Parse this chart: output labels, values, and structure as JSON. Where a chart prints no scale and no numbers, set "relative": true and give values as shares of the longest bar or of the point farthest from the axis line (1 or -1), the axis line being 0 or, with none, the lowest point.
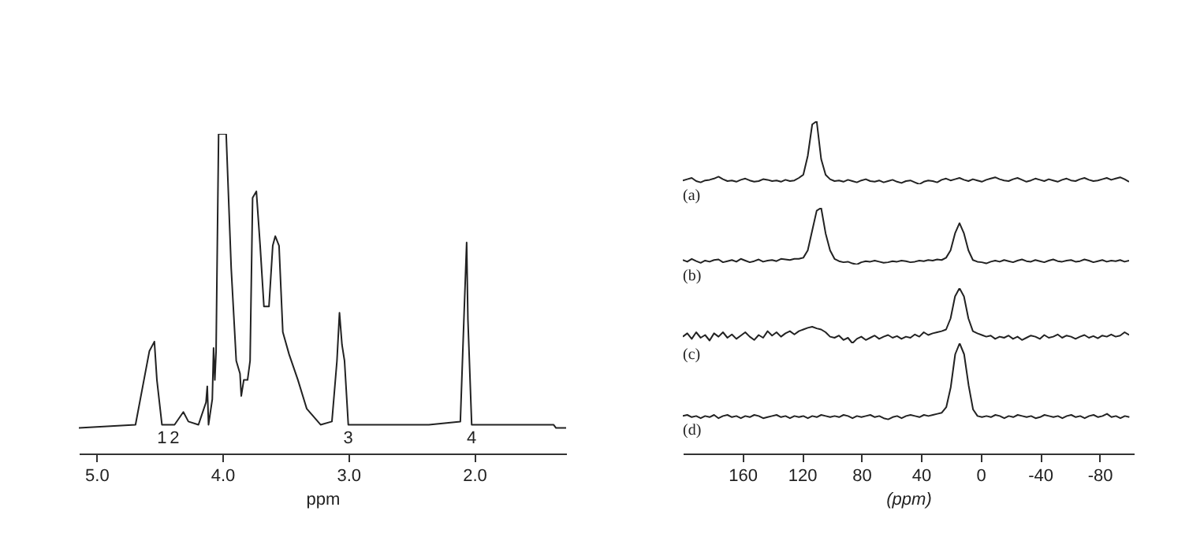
{
  "chart_data": [
    {
      "type": "line",
      "color": "#222222",
      "relative": true,
      "xlabel": "ppm",
      "xlim": [
        5.14,
        1.27
      ],
      "xticks": [
        {
          "value": 5,
          "label": "5.0"
        },
        {
          "value": 4,
          "label": "4.0"
        },
        {
          "value": 3,
          "label": "3.0"
        },
        {
          "value": 2,
          "label": "2.0"
        }
      ],
      "x": [
        5.14,
        4.69,
        4.58,
        4.54,
        4.52,
        4.48,
        4.38,
        4.31,
        4.27,
        4.19,
        4.13,
        4.12,
        4.11,
        4.08,
        4.07,
        4.06,
        4.05,
        4.03,
        3.97,
        3.93,
        3.89,
        3.86,
        3.85,
        3.83,
        3.8,
        3.78,
        3.76,
        3.73,
        3.7,
        3.67,
        3.63,
        3.6,
        3.58,
        3.55,
        3.52,
        3.47,
        3.4,
        3.33,
        3.22,
        3.13,
        3.09,
        3.07,
        3.05,
        3.03,
        3.0,
        2.95,
        2.36,
        2.11,
        2.08,
        2.06,
        2.05,
        2.02,
        1.94,
        1.43,
        1.37,
        1.35,
        1.27
      ],
      "values": [
        0.08,
        0.09,
        0.32,
        0.35,
        0.23,
        0.09,
        0.09,
        0.13,
        0.1,
        0.09,
        0.16,
        0.21,
        0.09,
        0.17,
        0.33,
        0.23,
        0.32,
        1,
        1,
        0.58,
        0.29,
        0.25,
        0.18,
        0.23,
        0.23,
        0.29,
        0.8,
        0.82,
        0.65,
        0.46,
        0.46,
        0.65,
        0.68,
        0.65,
        0.38,
        0.31,
        0.23,
        0.14,
        0.09,
        0.1,
        0.29,
        0.44,
        0.34,
        0.29,
        0.09,
        0.09,
        0.09,
        0.1,
        0.44,
        0.66,
        0.42,
        0.09,
        0.09,
        0.09,
        0.09,
        0.08,
        0.08
      ],
      "annotations": [
        {
          "text": "1",
          "x": 4.48,
          "y": 0.09
        },
        {
          "text": "2",
          "x": 4.38,
          "y": 0.09
        },
        {
          "text": "3",
          "x": 3.0,
          "y": 0.09
        },
        {
          "text": "4",
          "x": 2.02,
          "y": 0.09
        }
      ]
    },
    {
      "type": "line",
      "color": "#222222",
      "relative": true,
      "categories": [
        null,
        null,
        null,
        null,
        null,
        null,
        null,
        null,
        null,
        null,
        null,
        null,
        null,
        null,
        null,
        null,
        null,
        null,
        null,
        null,
        null,
        null,
        null,
        null,
        null,
        null,
        null,
        null,
        null,
        null,
        null,
        null,
        null,
        null,
        null,
        null,
        null,
        null,
        null,
        null,
        null,
        null,
        null,
        null,
        null,
        null,
        null,
        null,
        null,
        null,
        null,
        null,
        null,
        null,
        null,
        null,
        null,
        null,
        null,
        null,
        null,
        null,
        null,
        null,
        null,
        null,
        null,
        null,
        null,
        null,
        null,
        null,
        null,
        null,
        null,
        null,
        null,
        null,
        null,
        null,
        null,
        null,
        null,
        null,
        null,
        null,
        null,
        null,
        null,
        null,
        null,
        null,
        null,
        null,
        null,
        null,
        null,
        null,
        null,
        null,
        null
      ],
      "values": [
        0.06,
        0.08,
        0.1,
        0.05,
        0.03,
        0.06,
        0.07,
        0.09,
        0.12,
        0.08,
        0.05,
        0.06,
        0.04,
        0.07,
        0.09,
        0.06,
        0.04,
        0.05,
        0.08,
        0.07,
        0.05,
        0.06,
        0.04,
        0.07,
        0.05,
        0.06,
        0.1,
        0.15,
        0.45,
        0.95,
        1,
        0.4,
        0.15,
        0.08,
        0.05,
        0.06,
        0.04,
        0.07,
        0.05,
        0.03,
        0.06,
        0.08,
        0.05,
        0.04,
        0.06,
        0.03,
        0.05,
        0.07,
        0.04,
        0.02,
        0.05,
        0.06,
        0.03,
        0,
        0.04,
        0.06,
        0.05,
        0.03,
        0.07,
        0.09,
        0.06,
        0.08,
        0.1,
        0.07,
        0.05,
        0.08,
        0.06,
        0.04,
        0.07,
        0.09,
        0.11,
        0.08,
        0.06,
        0.05,
        0.08,
        0.1,
        0.07,
        0.04,
        0.06,
        0.09,
        0.07,
        0.05,
        0.08,
        0.06,
        0.04,
        0.07,
        0.09,
        0.06,
        0.05,
        0.08,
        0.1,
        0.07,
        0.05,
        0.06,
        0.08,
        0.1,
        0.07,
        0.09,
        0.11,
        0.08,
        0.04
      ],
      "annotations": [
        "(a)"
      ]
    },
    {
      "type": "line",
      "color": "#222222",
      "relative": true,
      "categories": [
        null,
        null,
        null,
        null,
        null,
        null,
        null,
        null,
        null,
        null,
        null,
        null,
        null,
        null,
        null,
        null,
        null,
        null,
        null,
        null,
        null,
        null,
        null,
        null,
        null,
        null,
        null,
        null,
        null,
        null,
        null,
        null,
        null,
        null,
        null,
        null,
        null,
        null,
        null,
        null,
        null,
        null,
        null,
        null,
        null,
        null,
        null,
        null,
        null,
        null,
        null,
        null,
        null,
        null,
        null,
        null,
        null,
        null,
        null,
        null,
        null,
        null,
        null,
        null,
        null,
        null,
        null,
        null,
        null,
        null,
        null,
        null,
        null,
        null,
        null,
        null,
        null,
        null,
        null,
        null,
        null,
        null,
        null,
        null,
        null,
        null,
        null,
        null,
        null,
        null,
        null,
        null,
        null,
        null,
        null,
        null,
        null,
        null,
        null,
        null,
        null
      ],
      "values": [
        0.08,
        0.05,
        0.1,
        0.06,
        0.03,
        0.07,
        0.05,
        0.08,
        0.09,
        0.04,
        0.06,
        0.08,
        0.05,
        0.1,
        0.07,
        0.04,
        0.06,
        0.09,
        0.05,
        0.07,
        0.08,
        0.06,
        0.1,
        0.09,
        0.08,
        0.1,
        0.1,
        0.12,
        0.25,
        0.6,
        0.95,
        1,
        0.55,
        0.25,
        0.1,
        0.06,
        0.04,
        0.05,
        0.02,
        0,
        0.04,
        0.06,
        0.05,
        0.07,
        0.05,
        0.03,
        0.04,
        0.06,
        0.05,
        0.07,
        0.06,
        0.04,
        0.05,
        0.07,
        0.06,
        0.08,
        0.07,
        0.09,
        0.08,
        0.12,
        0.25,
        0.55,
        0.73,
        0.55,
        0.25,
        0.08,
        0.05,
        0.04,
        0.02,
        0.05,
        0.07,
        0.05,
        0.08,
        0.06,
        0.04,
        0.07,
        0.09,
        0.06,
        0.05,
        0.08,
        0.06,
        0.04,
        0.07,
        0.09,
        0.06,
        0.05,
        0.07,
        0.08,
        0.05,
        0.06,
        0.09,
        0.07,
        0.04,
        0.06,
        0.08,
        0.05,
        0.07,
        0.06,
        0.08,
        0.05,
        0.07
      ],
      "annotations": [
        "(b)"
      ]
    },
    {
      "type": "line",
      "color": "#222222",
      "relative": true,
      "categories": [
        null,
        null,
        null,
        null,
        null,
        null,
        null,
        null,
        null,
        null,
        null,
        null,
        null,
        null,
        null,
        null,
        null,
        null,
        null,
        null,
        null,
        null,
        null,
        null,
        null,
        null,
        null,
        null,
        null,
        null,
        null,
        null,
        null,
        null,
        null,
        null,
        null,
        null,
        null,
        null,
        null,
        null,
        null,
        null,
        null,
        null,
        null,
        null,
        null,
        null,
        null,
        null,
        null,
        null,
        null,
        null,
        null,
        null,
        null,
        null,
        null,
        null,
        null,
        null,
        null,
        null,
        null,
        null,
        null,
        null,
        null,
        null,
        null,
        null,
        null,
        null,
        null,
        null,
        null,
        null,
        null,
        null,
        null,
        null,
        null,
        null,
        null,
        null,
        null,
        null,
        null,
        null,
        null,
        null,
        null,
        null,
        null,
        null,
        null,
        null,
        null
      ],
      "values": [
        0.12,
        0.18,
        0.08,
        0.2,
        0.1,
        0.15,
        0.05,
        0.18,
        0.12,
        0.2,
        0.1,
        0.16,
        0.08,
        0.14,
        0.2,
        0.12,
        0.06,
        0.15,
        0.1,
        0.22,
        0.14,
        0.2,
        0.12,
        0.18,
        0.22,
        0.16,
        0.22,
        0.25,
        0.28,
        0.3,
        0.27,
        0.25,
        0.2,
        0.12,
        0.1,
        0.14,
        0.06,
        0.1,
        0,
        0.08,
        0.12,
        0.06,
        0.1,
        0.14,
        0.08,
        0.12,
        0.15,
        0.1,
        0.13,
        0.08,
        0.12,
        0.1,
        0.16,
        0.12,
        0.2,
        0.15,
        0.18,
        0.2,
        0.22,
        0.25,
        0.45,
        0.85,
        1,
        0.85,
        0.45,
        0.22,
        0.18,
        0.15,
        0.12,
        0.14,
        0.08,
        0.12,
        0.1,
        0.14,
        0.08,
        0.12,
        0.06,
        0.1,
        0.14,
        0.12,
        0.08,
        0.15,
        0.1,
        0.12,
        0.16,
        0.1,
        0.14,
        0.12,
        0.08,
        0.12,
        0.15,
        0.1,
        0.13,
        0.09,
        0.14,
        0.12,
        0.16,
        0.12,
        0.14,
        0.2,
        0.15
      ],
      "annotations": [
        "(c)"
      ]
    },
    {
      "type": "line",
      "color": "#222222",
      "relative": true,
      "xlabel": "(ppm)",
      "xlim": [
        200,
        -103
      ],
      "xticks": [
        160,
        120,
        80,
        40,
        0,
        -40,
        -80
      ],
      "x": [
        200,
        197,
        194,
        191,
        188,
        185,
        182,
        179,
        176,
        173,
        170,
        167,
        164,
        161,
        158,
        155,
        152,
        149,
        146,
        143,
        140,
        137,
        134,
        131,
        128,
        125,
        122,
        119,
        116,
        113,
        110,
        107,
        104,
        101,
        98,
        95,
        92,
        89,
        86,
        83,
        80,
        77,
        74,
        71,
        68,
        65,
        62,
        59,
        56,
        53,
        50,
        47,
        44,
        41,
        38,
        35,
        32,
        29,
        26,
        23,
        20,
        17,
        14,
        11,
        8,
        5,
        2,
        -1,
        -4,
        -7,
        -10,
        -13,
        -16,
        -19,
        -22,
        -25,
        -28,
        -31,
        -34,
        -37,
        -40,
        -43,
        -46,
        -49,
        -52,
        -55,
        -58,
        -61,
        -64,
        -67,
        -70,
        -73,
        -76,
        -79,
        -82,
        -85,
        -88,
        -91,
        -94,
        -97,
        -100
      ],
      "values": [
        0.34,
        0.35,
        0.33,
        0.34,
        0.32,
        0.34,
        0.33,
        0.35,
        0.32,
        0.34,
        0.35,
        0.33,
        0.34,
        0.32,
        0.34,
        0.33,
        0.35,
        0.34,
        0.32,
        0.33,
        0.34,
        0.35,
        0.33,
        0.34,
        0.32,
        0.34,
        0.33,
        0.34,
        0.32,
        0.34,
        0.33,
        0.35,
        0.34,
        0.33,
        0.34,
        0.33,
        0.35,
        0.34,
        0.32,
        0.34,
        0.33,
        0.34,
        0.35,
        0.33,
        0.34,
        0.32,
        0.31,
        0.33,
        0.34,
        0.32,
        0.34,
        0.35,
        0.34,
        0.33,
        0.35,
        0.34,
        0.35,
        0.36,
        0.37,
        0.42,
        0.6,
        0.9,
        1,
        0.9,
        0.62,
        0.4,
        0.34,
        0.33,
        0.34,
        0.33,
        0.35,
        0.34,
        0.32,
        0.34,
        0.33,
        0.35,
        0.34,
        0.33,
        0.34,
        0.32,
        0.33,
        0.35,
        0.34,
        0.33,
        0.34,
        0.32,
        0.34,
        0.35,
        0.33,
        0.34,
        0.32,
        0.34,
        0.35,
        0.33,
        0.34,
        0.36,
        0.33,
        0.34,
        0.32,
        0.34,
        0.33
      ],
      "annotations": [
        "(d)"
      ]
    }
  ]
}
